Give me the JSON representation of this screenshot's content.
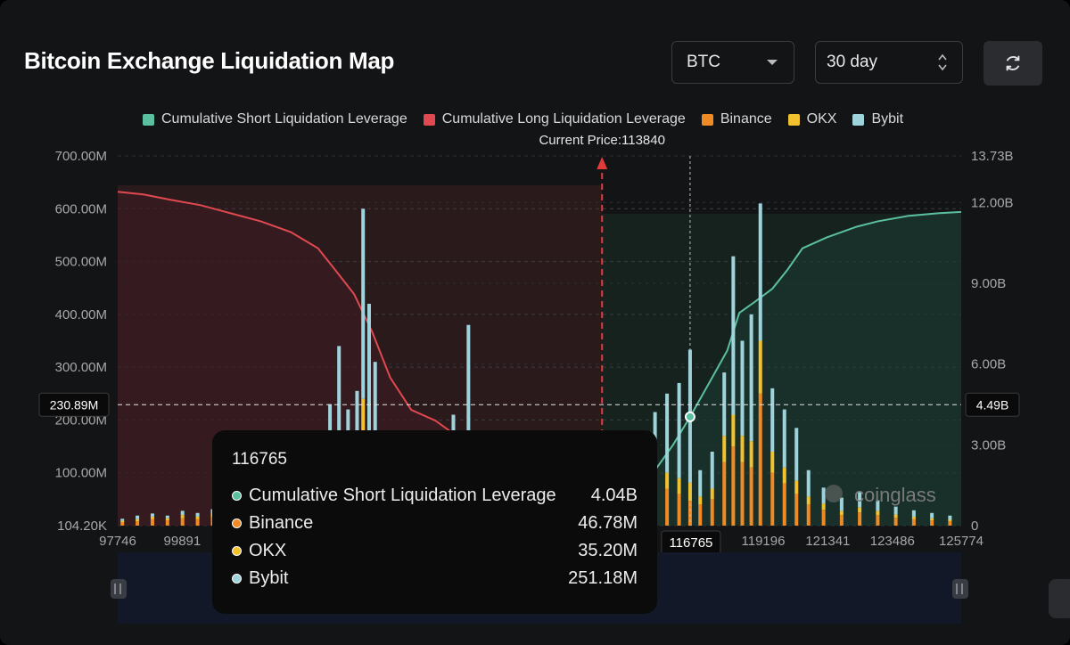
{
  "header": {
    "title": "Bitcoin Exchange Liquidation Map",
    "coin_select": "BTC",
    "range_select": "30 day"
  },
  "icons": {
    "refresh": "refresh-icon",
    "coin_caret": "chevron-down-icon",
    "range_stepper": "up-down-icon",
    "watermark": "coinglass-logo"
  },
  "colors": {
    "short_cum": "#5bc0a0",
    "long_cum": "#e0494f",
    "binance": "#f08a24",
    "okx": "#f2c12e",
    "bybit": "#9ed3db",
    "current_price": "#e03b3b"
  },
  "watermark": "coinglass",
  "current_price_label": "Current Price:113840",
  "crosshair": {
    "left_value": "230.89M",
    "right_value": "4.49B",
    "x_value": "116765"
  },
  "tooltip": {
    "title": "116765",
    "rows": [
      {
        "name": "Cumulative Short Liquidation Leverage",
        "value": "4.04B",
        "color": "#5bc0a0"
      },
      {
        "name": "Binance",
        "value": "46.78M",
        "color": "#f08a24"
      },
      {
        "name": "OKX",
        "value": "35.20M",
        "color": "#f2c12e"
      },
      {
        "name": "Bybit",
        "value": "251.18M",
        "color": "#9ed3db"
      }
    ]
  },
  "chart_data": {
    "type": "bar",
    "title": "Bitcoin Exchange Liquidation Map",
    "legend": [
      {
        "name": "Cumulative Short Liquidation Leverage",
        "color": "#5bc0a0"
      },
      {
        "name": "Cumulative Long Liquidation Leverage",
        "color": "#e0494f"
      },
      {
        "name": "Binance",
        "color": "#f08a24"
      },
      {
        "name": "OKX",
        "color": "#f2c12e"
      },
      {
        "name": "Bybit",
        "color": "#9ed3db"
      }
    ],
    "legend_position": "top",
    "xlim": [
      97746,
      125774
    ],
    "x_ticks": [
      97746,
      99891,
      116765,
      119196,
      121341,
      123486,
      125774
    ],
    "current_price": 113840,
    "left_axis": {
      "ticks": [
        "104.20K",
        "100.00M",
        "200.00M",
        "300.00M",
        "400.00M",
        "500.00M",
        "600.00M",
        "700.00M"
      ],
      "tick_values": [
        0.104,
        100,
        200,
        300,
        400,
        500,
        600,
        700
      ],
      "range_millions": [
        0,
        700
      ]
    },
    "right_axis": {
      "ticks": [
        "0",
        "3.00B",
        "6.00B",
        "9.00B",
        "12.00B",
        "13.73B"
      ],
      "tick_values": [
        0,
        3,
        6,
        9,
        12,
        13.73
      ],
      "range_billions": [
        0,
        13.73
      ]
    },
    "long_cumulative_billions": [
      [
        97746,
        12.4
      ],
      [
        98600,
        12.3
      ],
      [
        99500,
        12.1
      ],
      [
        100500,
        11.9
      ],
      [
        101500,
        11.6
      ],
      [
        102500,
        11.3
      ],
      [
        103500,
        10.9
      ],
      [
        104400,
        10.3
      ],
      [
        104900,
        9.6
      ],
      [
        105600,
        8.6
      ],
      [
        106200,
        7.2
      ],
      [
        106800,
        5.5
      ],
      [
        107500,
        4.3
      ],
      [
        108300,
        3.9
      ],
      [
        108800,
        3.5
      ],
      [
        109300,
        2.6
      ],
      [
        110000,
        2.0
      ],
      [
        111000,
        1.5
      ],
      [
        112000,
        1.0
      ],
      [
        113000,
        0.5
      ],
      [
        113840,
        0.0
      ]
    ],
    "short_cumulative_billions": [
      [
        113840,
        0.0
      ],
      [
        114500,
        0.9
      ],
      [
        115500,
        1.9
      ],
      [
        116200,
        3.0
      ],
      [
        116765,
        4.04
      ],
      [
        117500,
        5.5
      ],
      [
        118000,
        6.5
      ],
      [
        118400,
        7.9
      ],
      [
        118900,
        8.3
      ],
      [
        119500,
        8.8
      ],
      [
        120000,
        9.5
      ],
      [
        120500,
        10.3
      ],
      [
        121300,
        10.7
      ],
      [
        122300,
        11.1
      ],
      [
        123000,
        11.3
      ],
      [
        124000,
        11.5
      ],
      [
        125000,
        11.6
      ],
      [
        125774,
        11.65
      ]
    ],
    "bars_millions": [
      {
        "x": 97900,
        "binance": 6,
        "okx": 3,
        "bybit": 4
      },
      {
        "x": 98400,
        "binance": 8,
        "okx": 4,
        "bybit": 7
      },
      {
        "x": 98900,
        "binance": 12,
        "okx": 5,
        "bybit": 6
      },
      {
        "x": 99400,
        "binance": 10,
        "okx": 4,
        "bybit": 5
      },
      {
        "x": 99900,
        "binance": 14,
        "okx": 6,
        "bybit": 8
      },
      {
        "x": 100400,
        "binance": 12,
        "okx": 5,
        "bybit": 7
      },
      {
        "x": 100900,
        "binance": 16,
        "okx": 6,
        "bybit": 9
      },
      {
        "x": 101400,
        "binance": 18,
        "okx": 7,
        "bybit": 10
      },
      {
        "x": 101900,
        "binance": 15,
        "okx": 6,
        "bybit": 8
      },
      {
        "x": 102400,
        "binance": 20,
        "okx": 8,
        "bybit": 10
      },
      {
        "x": 102900,
        "binance": 18,
        "okx": 7,
        "bybit": 9
      },
      {
        "x": 103400,
        "binance": 22,
        "okx": 9,
        "bybit": 12
      },
      {
        "x": 103900,
        "binance": 20,
        "okx": 8,
        "bybit": 12
      },
      {
        "x": 104400,
        "binance": 30,
        "okx": 14,
        "bybit": 40
      },
      {
        "x": 104800,
        "binance": 60,
        "okx": 25,
        "bybit": 145
      },
      {
        "x": 105100,
        "binance": 80,
        "okx": 40,
        "bybit": 220
      },
      {
        "x": 105400,
        "binance": 60,
        "okx": 30,
        "bybit": 130
      },
      {
        "x": 105700,
        "binance": 70,
        "okx": 35,
        "bybit": 150
      },
      {
        "x": 105900,
        "binance": 180,
        "okx": 60,
        "bybit": 360
      },
      {
        "x": 106100,
        "binance": 120,
        "okx": 50,
        "bybit": 250
      },
      {
        "x": 106300,
        "binance": 100,
        "okx": 50,
        "bybit": 160
      },
      {
        "x": 106600,
        "binance": 50,
        "okx": 20,
        "bybit": 90
      },
      {
        "x": 107000,
        "binance": 30,
        "okx": 15,
        "bybit": 60
      },
      {
        "x": 107700,
        "binance": 25,
        "okx": 10,
        "bybit": 50
      },
      {
        "x": 108300,
        "binance": 30,
        "okx": 12,
        "bybit": 40
      },
      {
        "x": 108900,
        "binance": 50,
        "okx": 20,
        "bybit": 140
      },
      {
        "x": 109400,
        "binance": 90,
        "okx": 40,
        "bybit": 250
      },
      {
        "x": 109800,
        "binance": 40,
        "okx": 20,
        "bybit": 100
      },
      {
        "x": 110300,
        "binance": 60,
        "okx": 25,
        "bybit": 90
      },
      {
        "x": 111000,
        "binance": 50,
        "okx": 20,
        "bybit": 60
      },
      {
        "x": 111600,
        "binance": 45,
        "okx": 20,
        "bybit": 80
      },
      {
        "x": 112200,
        "binance": 30,
        "okx": 15,
        "bybit": 60
      },
      {
        "x": 112800,
        "binance": 40,
        "okx": 15,
        "bybit": 50
      },
      {
        "x": 113400,
        "binance": 25,
        "okx": 10,
        "bybit": 40
      },
      {
        "x": 114200,
        "binance": 30,
        "okx": 10,
        "bybit": 40
      },
      {
        "x": 114700,
        "binance": 40,
        "okx": 15,
        "bybit": 60
      },
      {
        "x": 115100,
        "binance": 50,
        "okx": 20,
        "bybit": 90
      },
      {
        "x": 115600,
        "binance": 60,
        "okx": 25,
        "bybit": 130
      },
      {
        "x": 116000,
        "binance": 70,
        "okx": 30,
        "bybit": 150
      },
      {
        "x": 116400,
        "binance": 60,
        "okx": 30,
        "bybit": 180
      },
      {
        "x": 116765,
        "binance": 46.78,
        "okx": 35.2,
        "bybit": 251.18
      },
      {
        "x": 117100,
        "binance": 40,
        "okx": 15,
        "bybit": 50
      },
      {
        "x": 117500,
        "binance": 50,
        "okx": 20,
        "bybit": 70
      },
      {
        "x": 117900,
        "binance": 120,
        "okx": 50,
        "bybit": 120
      },
      {
        "x": 118200,
        "binance": 150,
        "okx": 60,
        "bybit": 300
      },
      {
        "x": 118500,
        "binance": 120,
        "okx": 50,
        "bybit": 180
      },
      {
        "x": 118800,
        "binance": 110,
        "okx": 50,
        "bybit": 240
      },
      {
        "x": 119100,
        "binance": 250,
        "okx": 100,
        "bybit": 260
      },
      {
        "x": 119500,
        "binance": 100,
        "okx": 40,
        "bybit": 120
      },
      {
        "x": 119900,
        "binance": 80,
        "okx": 30,
        "bybit": 110
      },
      {
        "x": 120300,
        "binance": 60,
        "okx": 25,
        "bybit": 100
      },
      {
        "x": 120700,
        "binance": 40,
        "okx": 15,
        "bybit": 50
      },
      {
        "x": 121200,
        "binance": 30,
        "okx": 12,
        "bybit": 30
      },
      {
        "x": 121800,
        "binance": 20,
        "okx": 8,
        "bybit": 25
      },
      {
        "x": 122400,
        "binance": 25,
        "okx": 10,
        "bybit": 30
      },
      {
        "x": 123000,
        "binance": 20,
        "okx": 8,
        "bybit": 20
      },
      {
        "x": 123600,
        "binance": 15,
        "okx": 6,
        "bybit": 15
      },
      {
        "x": 124200,
        "binance": 12,
        "okx": 5,
        "bybit": 12
      },
      {
        "x": 124800,
        "binance": 10,
        "okx": 4,
        "bybit": 10
      },
      {
        "x": 125400,
        "binance": 8,
        "okx": 3,
        "bybit": 8
      }
    ]
  }
}
